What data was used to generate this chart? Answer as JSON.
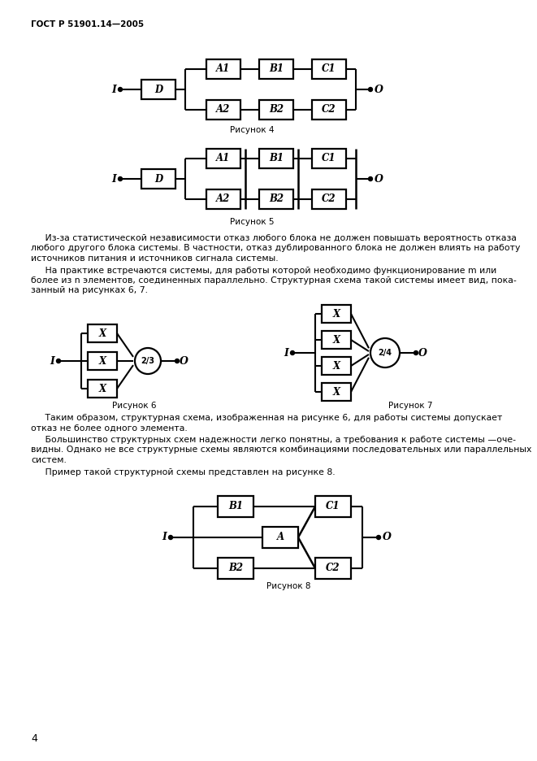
{
  "page_width": 6.61,
  "page_height": 9.36,
  "bg_color": "#ffffff",
  "text_color": "#000000",
  "header_text": "ГОСТ Р 51901.14—2005",
  "footer_text": "4",
  "fig4_caption": "Рисунок 4",
  "fig5_caption": "Рисунок 5",
  "fig6_caption": "Рисунок 6",
  "fig7_caption": "Рисунок 7",
  "fig8_caption": "Рисунок 8"
}
